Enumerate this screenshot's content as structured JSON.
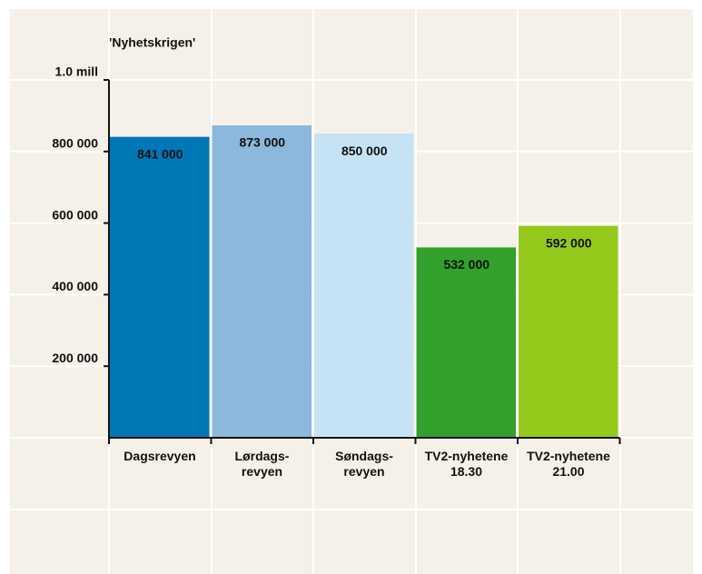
{
  "chart_data": {
    "type": "bar",
    "title": "'Nyhetskrigen'",
    "categories": [
      "Dagsrevyen",
      "Lørdags-\nrevyen",
      "Søndags-\nrevyen",
      "TV2-nyhetene\n18.30",
      "TV2-nyhetene\n21.00"
    ],
    "values": [
      841000,
      873000,
      850000,
      532000,
      592000
    ],
    "value_labels": [
      "841 000",
      "873 000",
      "850 000",
      "532 000",
      "592 000"
    ],
    "colors": [
      "#0077b6",
      "#8bb8dc",
      "#c5e3f4",
      "#33a02c",
      "#94c91c"
    ],
    "label_colors": [
      "#cde6f5",
      "#0a5c99",
      "#0a5c99",
      "#d6ea45",
      "#1d7a1d"
    ],
    "ylim": [
      0,
      1000000
    ],
    "yticks": [
      {
        "value": 200000,
        "label": "200 000"
      },
      {
        "value": 400000,
        "label": "400 000"
      },
      {
        "value": 600000,
        "label": "600 000"
      },
      {
        "value": 800000,
        "label": "800 000"
      },
      {
        "value": 1000000,
        "label": "1.0 mill"
      }
    ],
    "grid": true
  }
}
